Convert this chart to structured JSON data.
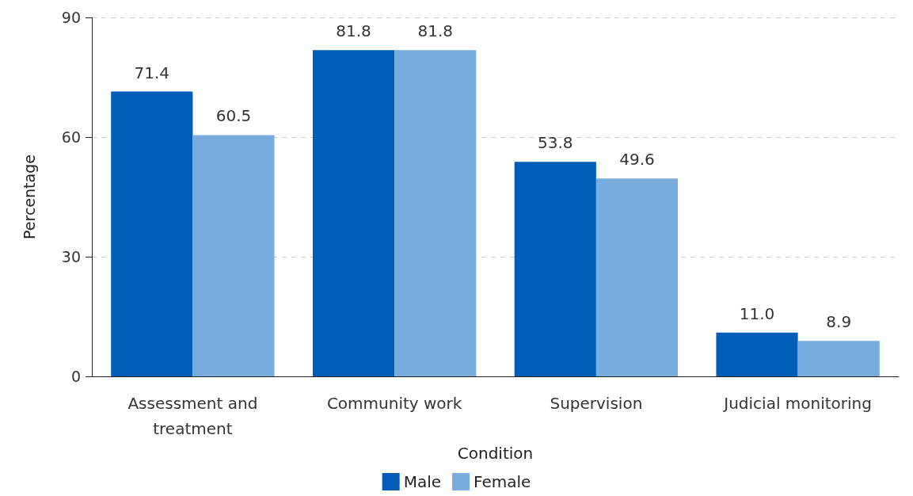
{
  "chart_data": {
    "type": "bar",
    "xlabel": "Condition",
    "ylabel": "Percentage",
    "categories": [
      "Assessment and\ntreatment",
      "Community work",
      "Supervision",
      "Judicial monitoring"
    ],
    "series": [
      {
        "name": "Male",
        "color": "#005eb8",
        "values": [
          71.4,
          81.8,
          53.8,
          11.0
        ],
        "value_labels": [
          "71.4",
          "81.8",
          "53.8",
          "11.0"
        ]
      },
      {
        "name": "Female",
        "color": "#78acdf",
        "values": [
          60.5,
          81.8,
          49.6,
          8.9
        ],
        "value_labels": [
          "60.5",
          "81.8",
          "49.6",
          "8.9"
        ]
      }
    ],
    "ylim": [
      0,
      90
    ],
    "yticks": [
      0,
      30,
      60,
      90
    ],
    "grid": "y",
    "legend": "bottom"
  }
}
